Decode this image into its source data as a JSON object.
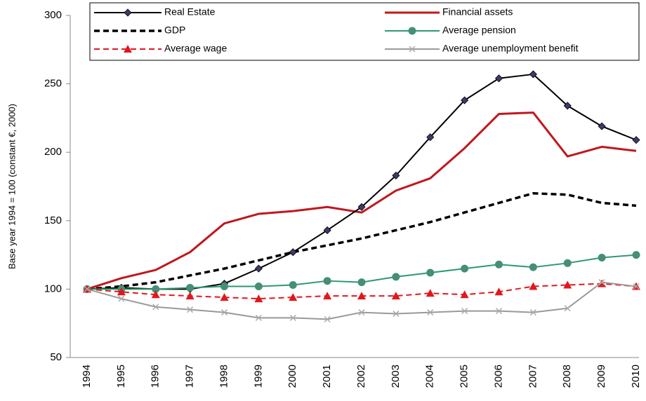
{
  "chart_data": {
    "type": "line",
    "y_label": "Base year 1994 = 100 (constant €, 2000)",
    "categories": [
      "1994",
      "1995",
      "1996",
      "1997",
      "1998",
      "1999",
      "2000",
      "2001",
      "2002",
      "2003",
      "2004",
      "2005",
      "2006",
      "2007",
      "2008",
      "2009",
      "2010"
    ],
    "series": [
      {
        "name": "Real Estate",
        "color": "#000000",
        "marker": "diamond",
        "marker_color": "#3b3b6b",
        "dashed": false,
        "width": 2,
        "values": [
          100,
          101,
          100,
          100,
          104,
          115,
          127,
          143,
          160,
          183,
          211,
          238,
          254,
          257,
          234,
          219,
          209
        ]
      },
      {
        "name": "Financial assets",
        "color": "#c0171d",
        "marker": "none",
        "dashed": false,
        "width": 3,
        "values": [
          100,
          108,
          114,
          127,
          148,
          155,
          157,
          160,
          156,
          172,
          181,
          203,
          228,
          229,
          197,
          204,
          201
        ]
      },
      {
        "name": "GDP",
        "color": "#000000",
        "marker": "none",
        "dashed": true,
        "width": 3.5,
        "values": [
          100,
          102,
          105,
          110,
          115,
          121,
          127,
          132,
          137,
          143,
          149,
          156,
          163,
          170,
          169,
          163,
          161
        ]
      },
      {
        "name": "Average pension",
        "color": "#2e9a6e",
        "marker": "circle",
        "marker_color": "#4d8a7a",
        "dashed": false,
        "width": 2,
        "values": [
          100,
          100,
          100,
          101,
          102,
          102,
          103,
          106,
          105,
          109,
          112,
          115,
          118,
          116,
          119,
          123,
          125
        ]
      },
      {
        "name": "Average wage",
        "color": "#e0181e",
        "marker": "triangle",
        "marker_color": "#e0181e",
        "dashed": true,
        "width": 2,
        "values": [
          100,
          98,
          96,
          95,
          94,
          93,
          94,
          95,
          95,
          95,
          97,
          96,
          98,
          102,
          103,
          104,
          102
        ]
      },
      {
        "name": "Average unemployment benefit",
        "color": "#999999",
        "marker": "x",
        "marker_color": "#aaaaaa",
        "dashed": false,
        "width": 2,
        "values": [
          100,
          93,
          87,
          85,
          83,
          79,
          79,
          78,
          83,
          82,
          83,
          84,
          84,
          83,
          86,
          105,
          102
        ]
      }
    ],
    "ylim": [
      50,
      300
    ],
    "yticks": [
      50,
      100,
      150,
      200,
      250,
      300
    ],
    "grid": false,
    "legend": "top"
  }
}
